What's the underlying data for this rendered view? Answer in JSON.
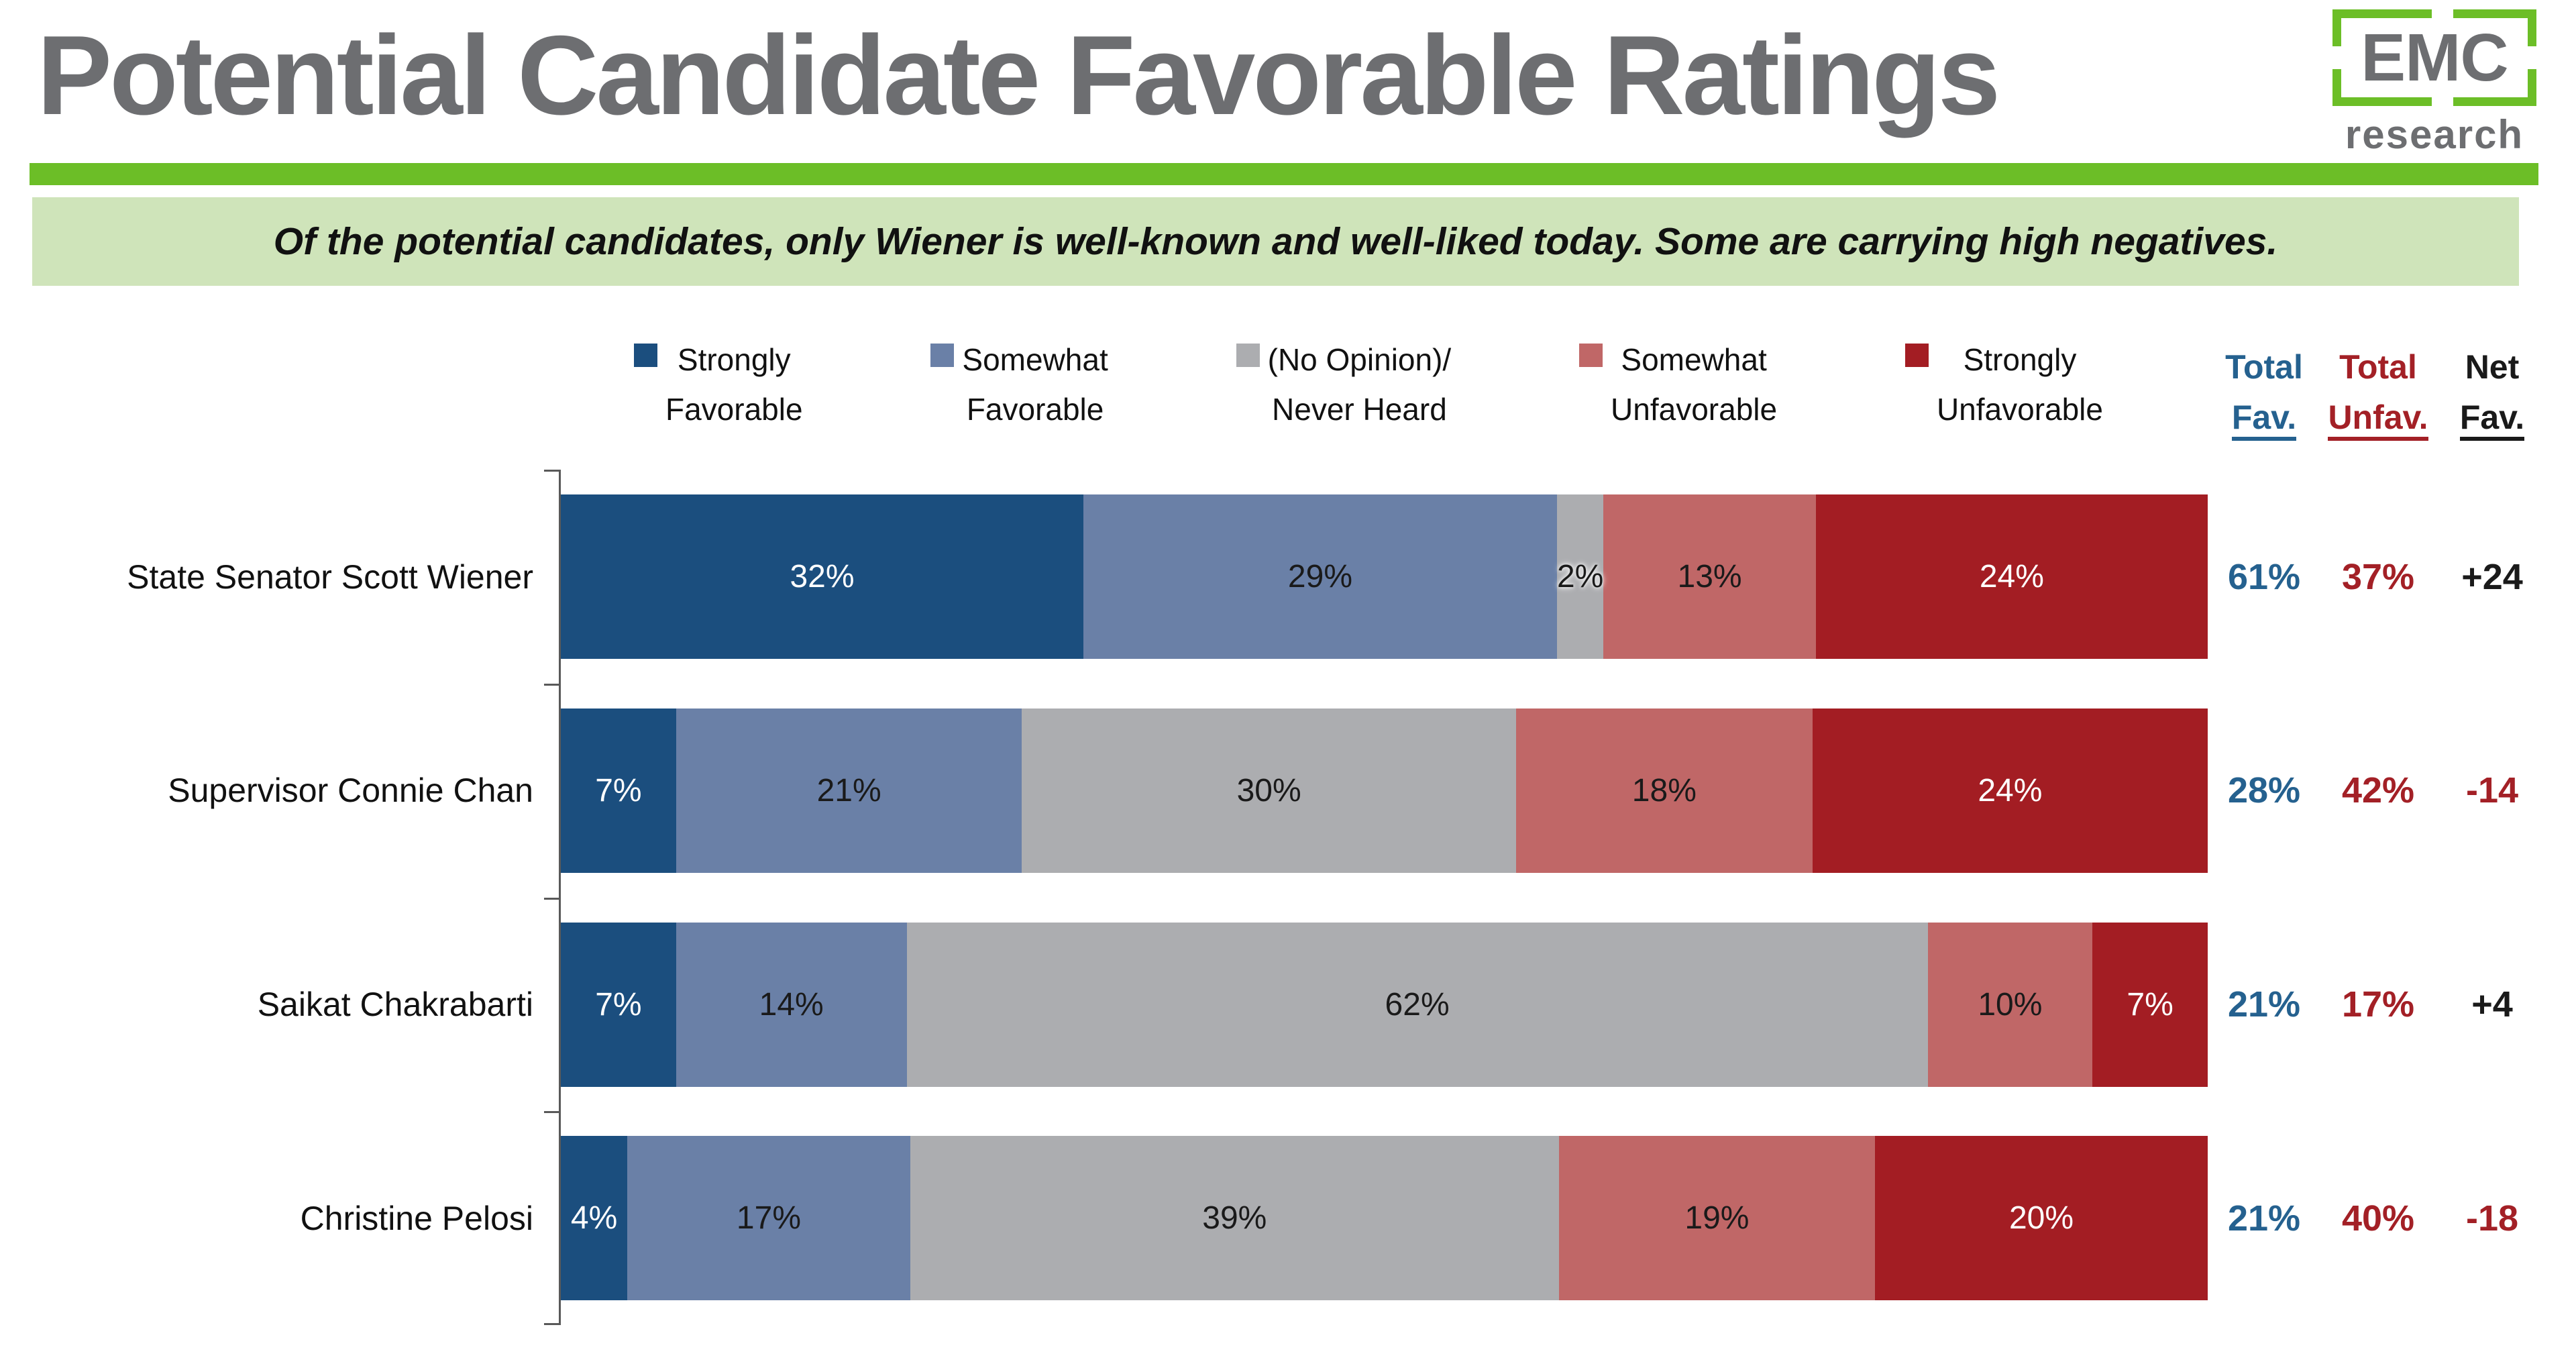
{
  "title": "Potential Candidate Favorable Ratings",
  "logo": {
    "top": "EMC",
    "bottom": "research"
  },
  "subtitle": "Of the potential candidates, only Wiener is well-known and well-liked today. Some are carrying high negatives.",
  "columns": {
    "total_fav": {
      "line1": "Total",
      "line2": "Fav."
    },
    "total_unfav": {
      "line1": "Total",
      "line2": "Unfav."
    },
    "net_fav": {
      "line1": "Net",
      "line2": "Fav."
    }
  },
  "colors": {
    "accent_green": "#6CBE27",
    "banner_bg": "#CFE4BA",
    "title_gray": "#6D6E71",
    "strongly_favorable": "#1B4E7E",
    "somewhat_favorable": "#6A80A7",
    "no_opinion": "#ACADB0",
    "somewhat_unfavorable": "#C06767",
    "strongly_unfavorable": "#A31D23",
    "total_fav_text": "#25618F",
    "total_unfav_text": "#A32026",
    "net_pos_text": "#1A1A1A",
    "net_neg_text": "#A32026",
    "axis": "#595959",
    "label_dark": "#1A1A1A",
    "label_light": "#FFFFFF"
  },
  "legend": [
    {
      "line1": "Strongly",
      "line2": "Favorable",
      "color_key": "strongly_favorable"
    },
    {
      "line1": "Somewhat",
      "line2": "Favorable",
      "color_key": "somewhat_favorable"
    },
    {
      "line1": "(No Opinion)/",
      "line2": "Never Heard",
      "color_key": "no_opinion"
    },
    {
      "line1": "Somewhat",
      "line2": "Unfavorable",
      "color_key": "somewhat_unfavorable"
    },
    {
      "line1": "Strongly",
      "line2": "Unfavorable",
      "color_key": "strongly_unfavorable"
    }
  ],
  "chart_data": {
    "type": "bar",
    "subtype": "horizontal_100pct_stacked",
    "categories": [
      "State Senator Scott Wiener",
      "Supervisor Connie Chan",
      "Saikat Chakrabarti",
      "Christine Pelosi"
    ],
    "series": [
      {
        "name": "Strongly Favorable",
        "color_key": "strongly_favorable",
        "label_light": true,
        "values": [
          32,
          7,
          7,
          4
        ]
      },
      {
        "name": "Somewhat Favorable",
        "color_key": "somewhat_favorable",
        "label_light": false,
        "values": [
          29,
          21,
          14,
          17
        ]
      },
      {
        "name": "(No Opinion)/Never Heard",
        "color_key": "no_opinion",
        "label_light": false,
        "values": [
          2,
          30,
          62,
          39
        ]
      },
      {
        "name": "Somewhat Unfavorable",
        "color_key": "somewhat_unfavorable",
        "label_light": false,
        "values": [
          13,
          18,
          10,
          19
        ]
      },
      {
        "name": "Strongly Unfavorable",
        "color_key": "strongly_unfavorable",
        "label_light": true,
        "values": [
          24,
          24,
          7,
          20
        ]
      }
    ],
    "value_suffix": "%",
    "totals": {
      "total_fav": [
        "61%",
        "28%",
        "21%",
        "21%"
      ],
      "total_unfav": [
        "37%",
        "42%",
        "17%",
        "40%"
      ],
      "net_fav": [
        "+24",
        "-14",
        "+4",
        "-18"
      ]
    },
    "axis": {
      "x_range": [
        0,
        100
      ],
      "gridlines": false
    },
    "legend_position": "top"
  }
}
